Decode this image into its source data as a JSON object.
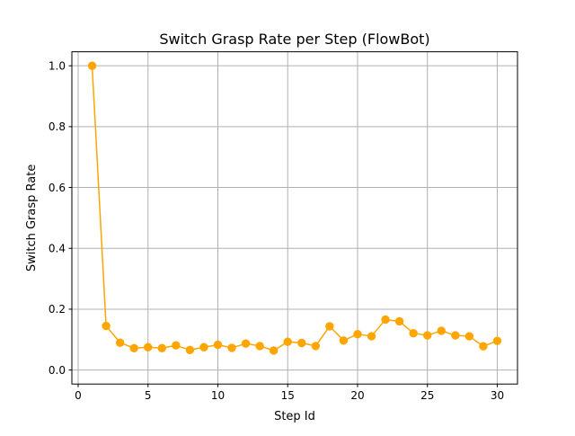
{
  "chart_data": {
    "type": "line",
    "title": "Switch Grasp Rate per Step (FlowBot)",
    "xlabel": "Step Id",
    "ylabel": "Switch Grasp Rate",
    "xlim": [
      -0.45,
      31.45
    ],
    "ylim": [
      -0.046,
      1.046
    ],
    "xticks": [
      0,
      5,
      10,
      15,
      20,
      25,
      30
    ],
    "yticks": [
      0.0,
      0.2,
      0.4,
      0.6,
      0.8,
      1.0
    ],
    "xtick_labels": [
      "0",
      "5",
      "10",
      "15",
      "20",
      "25",
      "30"
    ],
    "ytick_labels": [
      "0.0",
      "0.2",
      "0.4",
      "0.6",
      "0.8",
      "1.0"
    ],
    "grid": true,
    "color": "#ffa500",
    "series": [
      {
        "x": [
          1,
          2,
          3,
          4,
          5,
          6,
          7,
          8,
          9,
          10,
          11,
          12,
          13,
          14,
          15,
          16,
          17,
          18,
          19,
          20,
          21,
          22,
          23,
          24,
          25,
          26,
          27,
          28,
          29,
          30
        ],
        "y": [
          1.0,
          0.145,
          0.09,
          0.072,
          0.075,
          0.072,
          0.081,
          0.066,
          0.075,
          0.083,
          0.073,
          0.087,
          0.079,
          0.064,
          0.093,
          0.089,
          0.079,
          0.144,
          0.097,
          0.118,
          0.111,
          0.166,
          0.16,
          0.121,
          0.114,
          0.129,
          0.114,
          0.111,
          0.078,
          0.096
        ]
      }
    ]
  }
}
